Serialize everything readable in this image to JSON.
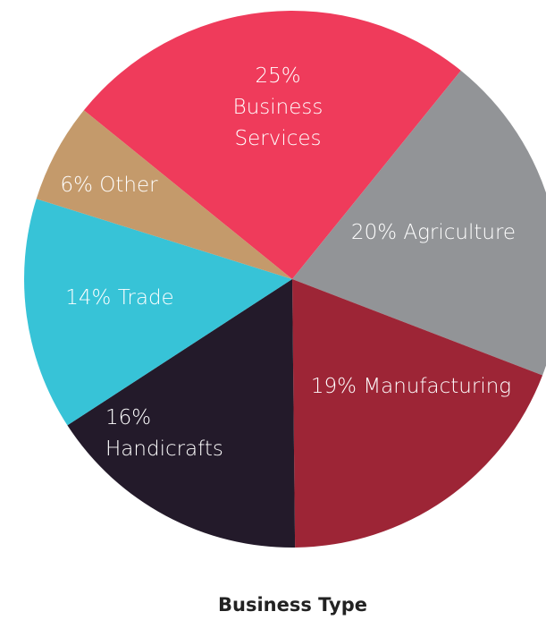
{
  "chart_data": {
    "type": "pie",
    "title": "Business Type",
    "categories": [
      "Business Services",
      "Agriculture",
      "Manufacturing",
      "Handicrafts",
      "Trade",
      "Other"
    ],
    "values": [
      25,
      20,
      19,
      16,
      14,
      6
    ],
    "value_labels": [
      "25%",
      "20%",
      "19%",
      "16%",
      "14%",
      "6%"
    ],
    "colors": [
      "#ef3b5b",
      "#929497",
      "#9d2536",
      "#231a2a",
      "#37c3d7",
      "#c49a6b"
    ]
  }
}
